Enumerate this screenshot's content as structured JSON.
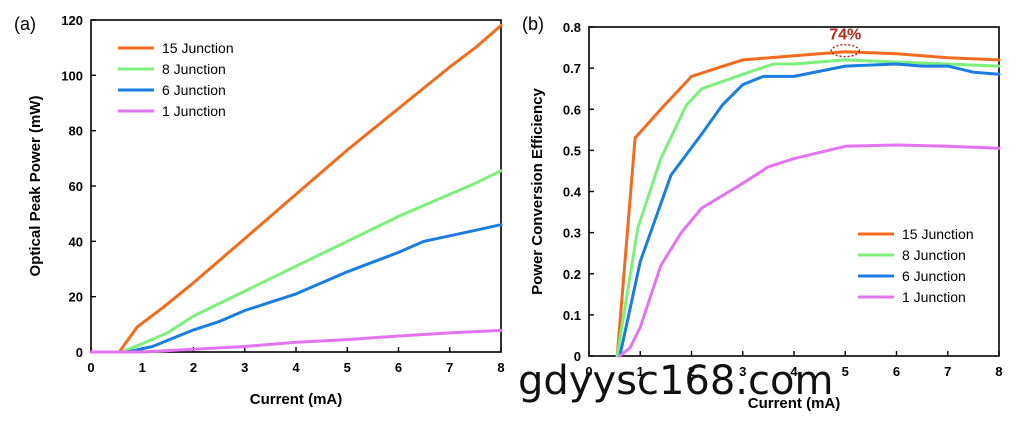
{
  "chart_data": [
    {
      "type": "line",
      "panel_label": "(a)",
      "xlabel": "Current (mA)",
      "ylabel": "Optical Peak Power (mW)",
      "xlim": [
        0,
        8
      ],
      "ylim": [
        0,
        120
      ],
      "xticks": [
        "0",
        "1",
        "2",
        "3",
        "4",
        "5",
        "6",
        "7",
        "8"
      ],
      "yticks": [
        "0",
        "20",
        "40",
        "60",
        "80",
        "100",
        "120"
      ],
      "legend_position": "top-left",
      "series": [
        {
          "name": "15 Junction",
          "color": "#f26b1d",
          "points": [
            [
              0,
              0
            ],
            [
              0.55,
              0
            ],
            [
              0.9,
              9
            ],
            [
              1.4,
              16
            ],
            [
              2,
              25
            ],
            [
              3,
              41
            ],
            [
              4,
              57
            ],
            [
              5,
              73
            ],
            [
              6,
              88
            ],
            [
              7,
              103
            ],
            [
              7.5,
              110
            ],
            [
              8,
              118
            ]
          ]
        },
        {
          "name": "8 Junction",
          "color": "#7cf07a",
          "points": [
            [
              0,
              0
            ],
            [
              0.6,
              0
            ],
            [
              1,
              3
            ],
            [
              1.5,
              7
            ],
            [
              2,
              13
            ],
            [
              3,
              22
            ],
            [
              4,
              31
            ],
            [
              5,
              40
            ],
            [
              6,
              49
            ],
            [
              7,
              57
            ],
            [
              7.5,
              61
            ],
            [
              8,
              65.5
            ]
          ]
        },
        {
          "name": "6 Junction",
          "color": "#1a7de0",
          "points": [
            [
              0,
              0
            ],
            [
              0.7,
              0
            ],
            [
              1.2,
              2
            ],
            [
              2,
              8
            ],
            [
              2.5,
              11
            ],
            [
              3,
              15
            ],
            [
              3.5,
              18
            ],
            [
              4,
              21
            ],
            [
              5,
              29
            ],
            [
              6,
              36
            ],
            [
              6.5,
              40
            ],
            [
              7,
              42
            ],
            [
              7.5,
              44
            ],
            [
              8,
              46
            ]
          ]
        },
        {
          "name": "1 Junction",
          "color": "#e473f2",
          "points": [
            [
              0,
              0
            ],
            [
              1,
              0
            ],
            [
              2,
              1
            ],
            [
              3,
              2
            ],
            [
              4,
              3.5
            ],
            [
              5,
              4.5
            ],
            [
              6,
              5.8
            ],
            [
              7,
              6.9
            ],
            [
              8,
              7.8
            ]
          ]
        }
      ]
    },
    {
      "type": "line",
      "panel_label": "(b)",
      "xlabel": "Current (mA)",
      "ylabel": "Power Conversion Efficiency",
      "xlim": [
        0,
        8
      ],
      "ylim": [
        0,
        0.8
      ],
      "xticks": [
        "0",
        "1",
        "2",
        "3",
        "4",
        "5",
        "6",
        "7",
        "8"
      ],
      "yticks": [
        "0",
        "0.1",
        "0.2",
        "0.3",
        "0.4",
        "0.5",
        "0.6",
        "0.7",
        "0.8"
      ],
      "legend_position": "bottom-right",
      "annotation": "74%",
      "series": [
        {
          "name": "15 Junction",
          "color": "#f26b1d",
          "points": [
            [
              0.55,
              0
            ],
            [
              0.9,
              0.53
            ],
            [
              1.4,
              0.6
            ],
            [
              2,
              0.68
            ],
            [
              2.5,
              0.7
            ],
            [
              3,
              0.72
            ],
            [
              4,
              0.73
            ],
            [
              5,
              0.74
            ],
            [
              6,
              0.735
            ],
            [
              7,
              0.725
            ],
            [
              8,
              0.72
            ]
          ]
        },
        {
          "name": "8 Junction",
          "color": "#7cf07a",
          "points": [
            [
              0.55,
              0
            ],
            [
              0.95,
              0.31
            ],
            [
              1.4,
              0.48
            ],
            [
              1.9,
              0.61
            ],
            [
              2.2,
              0.65
            ],
            [
              3,
              0.685
            ],
            [
              3.6,
              0.71
            ],
            [
              4,
              0.71
            ],
            [
              5,
              0.72
            ],
            [
              6,
              0.715
            ],
            [
              7,
              0.71
            ],
            [
              8,
              0.705
            ]
          ]
        },
        {
          "name": "6 Junction",
          "color": "#1a7de0",
          "points": [
            [
              0.6,
              0
            ],
            [
              1,
              0.23
            ],
            [
              1.6,
              0.44
            ],
            [
              2.2,
              0.54
            ],
            [
              2.6,
              0.61
            ],
            [
              3,
              0.66
            ],
            [
              3.4,
              0.68
            ],
            [
              4,
              0.68
            ],
            [
              5,
              0.705
            ],
            [
              6,
              0.71
            ],
            [
              6.5,
              0.705
            ],
            [
              7,
              0.705
            ],
            [
              7.5,
              0.69
            ],
            [
              8,
              0.685
            ]
          ]
        },
        {
          "name": "1 Junction",
          "color": "#e473f2",
          "points": [
            [
              0.6,
              0
            ],
            [
              0.8,
              0.02
            ],
            [
              1,
              0.07
            ],
            [
              1.4,
              0.22
            ],
            [
              1.8,
              0.3
            ],
            [
              2.2,
              0.36
            ],
            [
              3,
              0.42
            ],
            [
              3.5,
              0.46
            ],
            [
              4,
              0.48
            ],
            [
              5,
              0.51
            ],
            [
              6,
              0.513
            ],
            [
              7,
              0.51
            ],
            [
              8,
              0.505
            ]
          ]
        }
      ]
    }
  ],
  "watermark": "gdyysc168.com"
}
